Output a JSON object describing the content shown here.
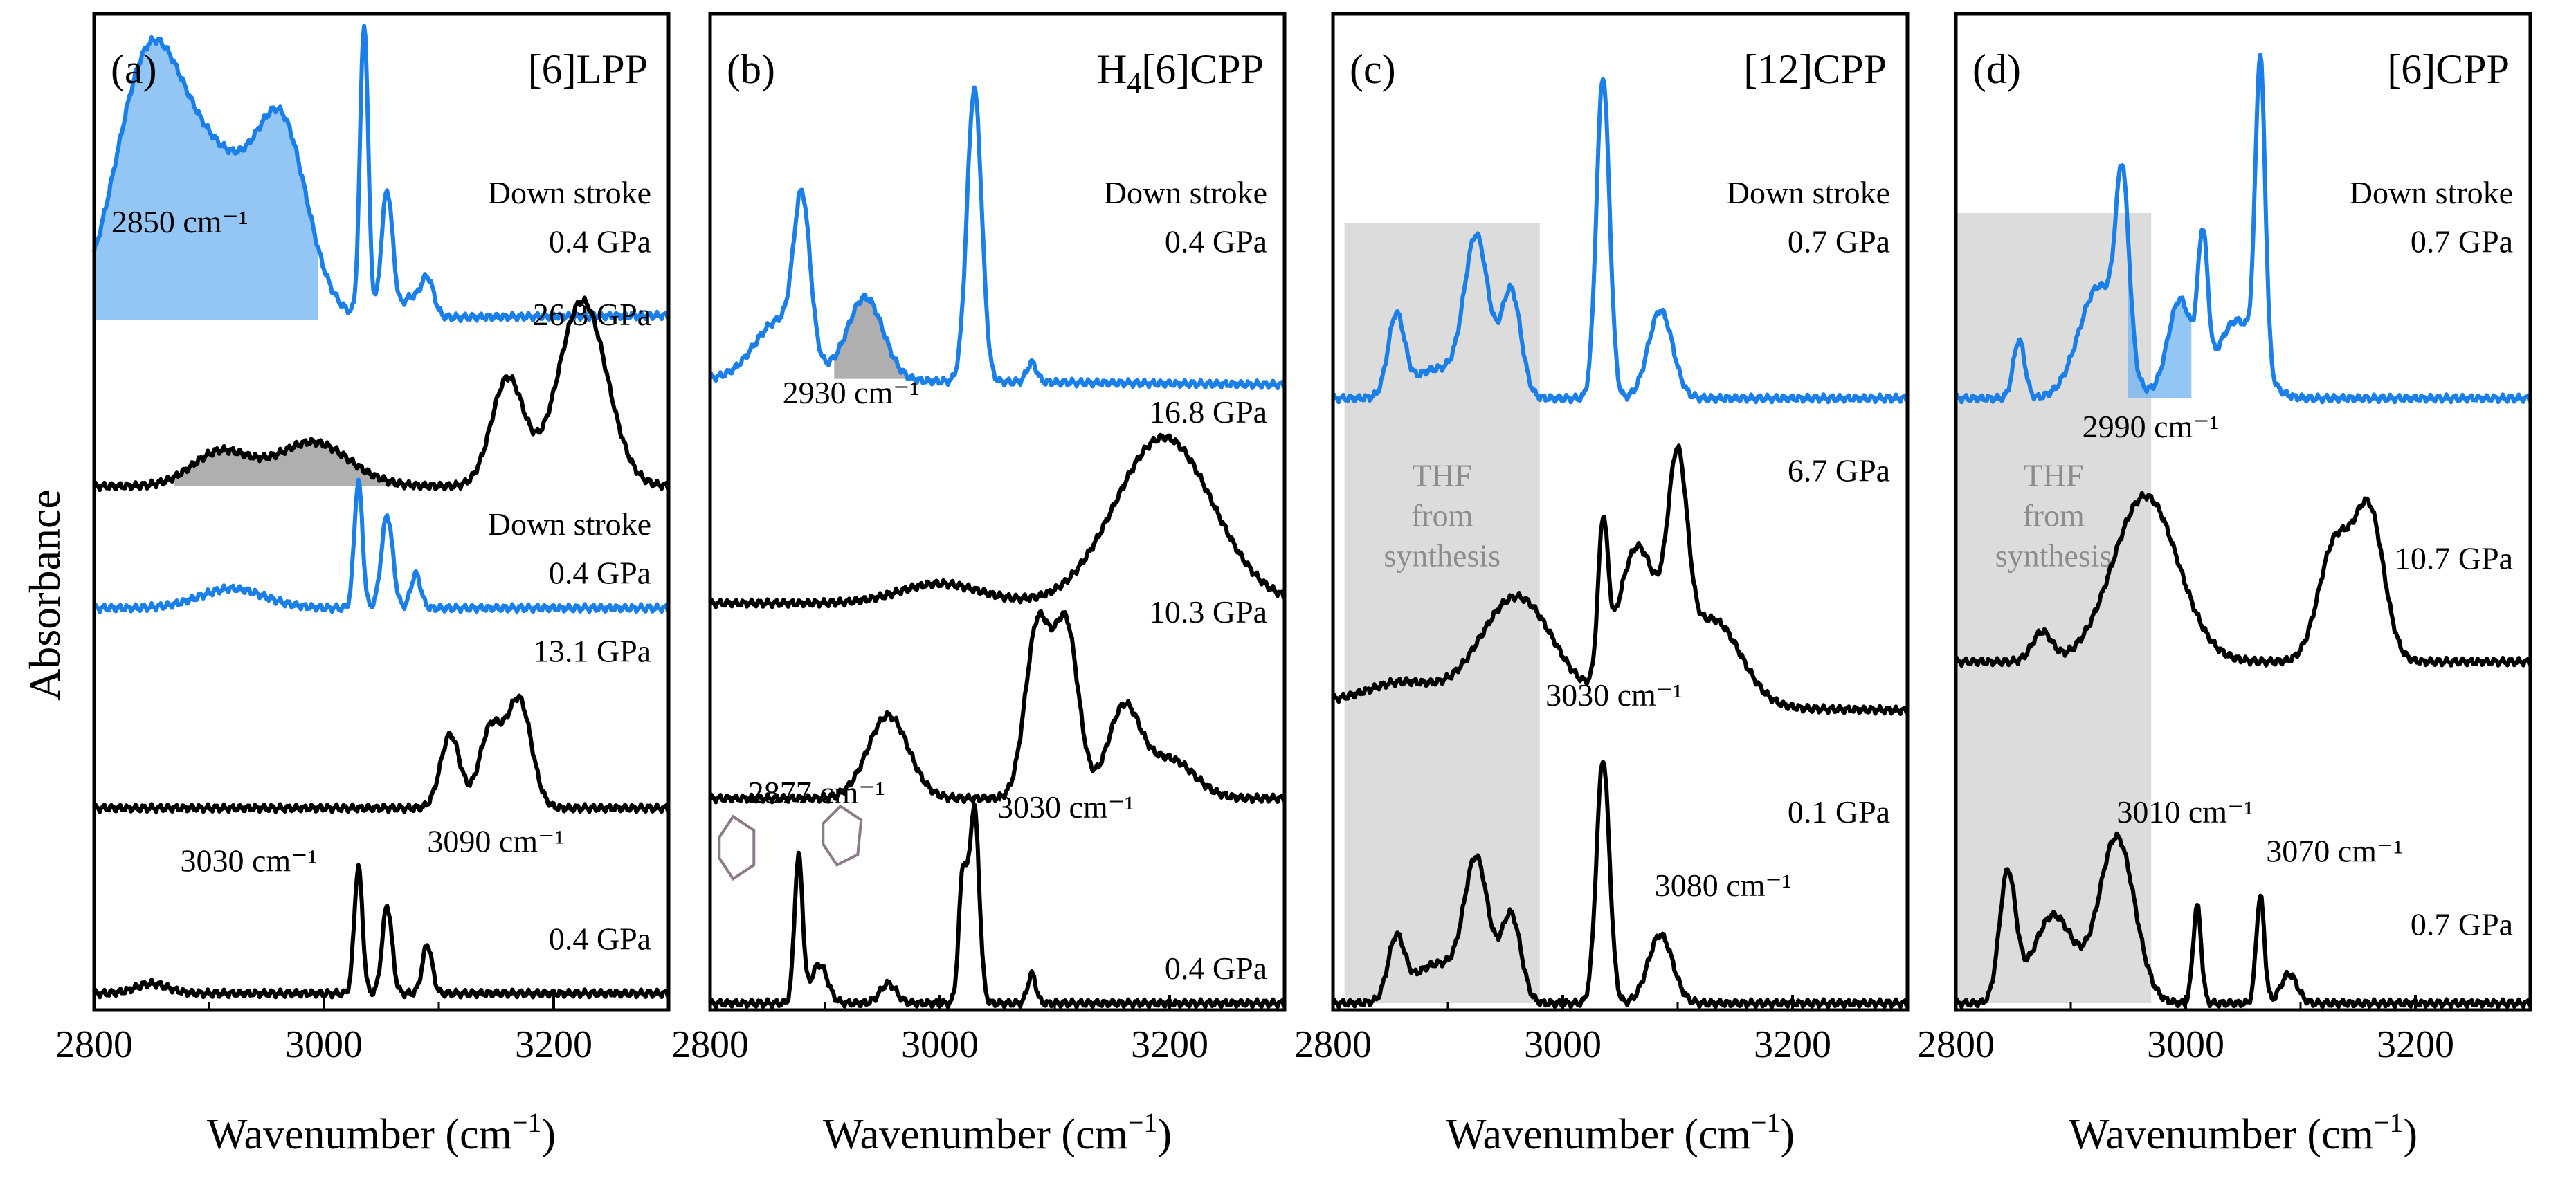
{
  "figure": {
    "y_axis_label": "Absorbance",
    "x_axis_label": "Wavenumber (cm",
    "x_axis_label_sup": "−1",
    "x_axis_label_tail": ")"
  },
  "colors": {
    "blue": "#1a7fe8",
    "black": "#000000",
    "gray_fill": "#a6a6a6",
    "blue_fill": "#6fb2f2",
    "thf_box": "#dcdcdc",
    "thf_text": "#8c8c8c"
  },
  "chart_data": [
    {
      "id": "a",
      "type": "line",
      "panel_label": "(a)",
      "title": "[6]LPP",
      "title_parts": [
        {
          "t": "[6]LPP",
          "sub": false
        }
      ],
      "xlim": [
        2800,
        3300
      ],
      "xticks": [
        2800,
        3000,
        3200
      ],
      "ylim": [
        0,
        1
      ],
      "series": [
        {
          "name": "0.4 GPa",
          "color": "blue",
          "role": "down stroke",
          "peaks": [
            [
              2845,
              0.92,
              40
            ],
            [
              2905,
              0.86,
              60
            ],
            [
              2965,
              0.85,
              30
            ],
            [
              3035,
              1.0,
              5
            ],
            [
              3055,
              0.83,
              7
            ],
            [
              3075,
              0.72,
              10
            ],
            [
              3090,
              0.74,
              8
            ]
          ],
          "base": 0.7,
          "tilt": 0.005
        },
        {
          "name": "26.3 GPa",
          "color": "black",
          "peaks": [
            [
              2910,
              0.565,
              35
            ],
            [
              2990,
              0.575,
              45
            ],
            [
              3160,
              0.64,
              20
            ],
            [
              3225,
              0.72,
              30
            ]
          ],
          "base": 0.53,
          "tilt": 0.0
        },
        {
          "name": "0.4 GPa",
          "color": "blue",
          "role": "down stroke",
          "peaks": [
            [
              3030,
              0.535,
              5
            ],
            [
              3055,
              0.5,
              7
            ],
            [
              3080,
              0.44,
              6
            ],
            [
              2920,
              0.425,
              40
            ]
          ],
          "base": 0.405,
          "tilt": 0.0
        },
        {
          "name": "13.1 GPa",
          "color": "black",
          "peaks": [
            [
              3110,
              0.275,
              12
            ],
            [
              3145,
              0.28,
              14
            ],
            [
              3170,
              0.31,
              15
            ]
          ],
          "base": 0.2,
          "tilt": 0.0
        },
        {
          "name": "0.4 GPa",
          "color": "black",
          "peaks": [
            [
              3030,
              0.14,
              5
            ],
            [
              3055,
              0.1,
              6
            ],
            [
              3090,
              0.06,
              6
            ],
            [
              2850,
              0.02,
              20
            ]
          ],
          "base": 0.01,
          "tilt": 0.0
        }
      ],
      "annotations": [
        {
          "text": "Down stroke",
          "wn": 3285,
          "y": 0.82,
          "anchor": "end"
        },
        {
          "text": "0.4 GPa",
          "wn": 3285,
          "y": 0.77,
          "anchor": "end"
        },
        {
          "text": "26.3 GPa",
          "wn": 3285,
          "y": 0.695,
          "anchor": "end"
        },
        {
          "text": "Down stroke",
          "wn": 3285,
          "y": 0.48,
          "anchor": "end"
        },
        {
          "text": "0.4 GPa",
          "wn": 3285,
          "y": 0.43,
          "anchor": "end"
        },
        {
          "text": "13.1 GPa",
          "wn": 3285,
          "y": 0.35,
          "anchor": "end"
        },
        {
          "text": "3030 cm⁻¹",
          "wn": 2875,
          "y": 0.135,
          "anchor": "start"
        },
        {
          "text": "3090 cm⁻¹",
          "wn": 3090,
          "y": 0.155,
          "anchor": "start"
        },
        {
          "text": "0.4 GPa",
          "wn": 3285,
          "y": 0.055,
          "anchor": "end"
        },
        {
          "text": "2850 cm⁻¹",
          "wn": 2815,
          "y": 0.79,
          "anchor": "start"
        }
      ],
      "shaded": [
        {
          "kind": "blue_fill",
          "series_index": 0,
          "wn_range": [
            2800,
            2995
          ],
          "floor": 0.7
        },
        {
          "kind": "gray_fill",
          "series_index": 1,
          "wn_range": [
            2870,
            3070
          ],
          "floor": 0.53
        }
      ]
    },
    {
      "id": "b",
      "type": "line",
      "panel_label": "(b)",
      "title": "H4[6]CPP",
      "title_parts": [
        {
          "t": "H",
          "sub": false
        },
        {
          "t": "4",
          "sub": true
        },
        {
          "t": "[6]CPP",
          "sub": false
        }
      ],
      "xlim": [
        2800,
        3300
      ],
      "xticks": [
        2800,
        3000,
        3200
      ],
      "ylim": [
        0,
        1
      ],
      "series": [
        {
          "name": "0.4 GPa",
          "color": "blue",
          "role": "down stroke",
          "peaks": [
            [
              2880,
              0.795,
              10
            ],
            [
              2935,
              0.725,
              22
            ],
            [
              3030,
              0.94,
              9
            ],
            [
              3080,
              0.66,
              6
            ],
            [
              2860,
              0.7,
              30
            ]
          ],
          "base": 0.64,
          "tilt": -0.006
        },
        {
          "name": "16.8 GPa",
          "color": "black",
          "peaks": [
            [
              3195,
              0.58,
              60
            ],
            [
              3000,
              0.43,
              50
            ]
          ],
          "base": 0.41,
          "tilt": 0.0
        },
        {
          "name": "10.3 GPa",
          "color": "black",
          "peaks": [
            [
              2955,
              0.295,
              25
            ],
            [
              3085,
              0.385,
              15
            ],
            [
              3110,
              0.385,
              15
            ],
            [
              3160,
              0.3,
              20
            ],
            [
              3200,
              0.25,
              30
            ]
          ],
          "base": 0.21,
          "tilt": 0.0
        },
        {
          "name": "0.4 GPa",
          "color": "black",
          "peaks": [
            [
              2877,
              0.15,
              5
            ],
            [
              2895,
              0.04,
              10
            ],
            [
              2955,
              0.02,
              10
            ],
            [
              3020,
              0.13,
              5
            ],
            [
              3030,
              0.2,
              6
            ],
            [
              3080,
              0.03,
              5
            ]
          ],
          "base": 0.0,
          "tilt": 0.0
        }
      ],
      "annotations": [
        {
          "text": "Down stroke",
          "wn": 3285,
          "y": 0.82,
          "anchor": "end"
        },
        {
          "text": "0.4 GPa",
          "wn": 3285,
          "y": 0.77,
          "anchor": "end"
        },
        {
          "text": "2930 cm⁻¹",
          "wn": 2863,
          "y": 0.615,
          "anchor": "start"
        },
        {
          "text": "16.8 GPa",
          "wn": 3285,
          "y": 0.595,
          "anchor": "end"
        },
        {
          "text": "10.3 GPa",
          "wn": 3285,
          "y": 0.39,
          "anchor": "end"
        },
        {
          "text": "2877 cm⁻¹",
          "wn": 2833,
          "y": 0.205,
          "anchor": "start"
        },
        {
          "text": "3030 cm⁻¹",
          "wn": 3050,
          "y": 0.19,
          "anchor": "start"
        },
        {
          "text": "0.4 GPa",
          "wn": 3285,
          "y": 0.025,
          "anchor": "end"
        }
      ],
      "shaded": [
        {
          "kind": "gray_fill",
          "series_index": 0,
          "wn_range": [
            2908,
            2975
          ],
          "floor": 0.64
        }
      ],
      "molecules": true
    },
    {
      "id": "c",
      "type": "line",
      "panel_label": "(c)",
      "title": "[12]CPP",
      "title_parts": [
        {
          "t": "[12]CPP",
          "sub": false
        }
      ],
      "xlim": [
        2800,
        3300
      ],
      "xticks": [
        2800,
        3000,
        3200
      ],
      "ylim": [
        0,
        1
      ],
      "series": [
        {
          "name": "0.7 GPa",
          "color": "blue",
          "role": "down stroke",
          "peaks": [
            [
              2855,
              0.7,
              10
            ],
            [
              2925,
              0.78,
              15
            ],
            [
              2955,
              0.73,
              12
            ],
            [
              3035,
              0.95,
              8
            ],
            [
              3085,
              0.71,
              15
            ],
            [
              2890,
              0.65,
              30
            ]
          ],
          "base": 0.62,
          "tilt": 0.0
        },
        {
          "name": "6.7 GPa",
          "color": "black",
          "peaks": [
            [
              2860,
              0.33,
              40
            ],
            [
              2960,
              0.42,
              45
            ],
            [
              3035,
              0.46,
              6
            ],
            [
              3065,
              0.47,
              25
            ],
            [
              3100,
              0.51,
              12
            ],
            [
              3130,
              0.4,
              35
            ]
          ],
          "base": 0.31,
          "tilt": -0.01
        },
        {
          "name": "0.1 GPa",
          "color": "black",
          "peaks": [
            [
              2855,
              0.06,
              10
            ],
            [
              2925,
              0.14,
              15
            ],
            [
              2955,
              0.09,
              12
            ],
            [
              3035,
              0.25,
              8
            ],
            [
              3085,
              0.07,
              15
            ],
            [
              2890,
              0.04,
              30
            ]
          ],
          "base": 0.0,
          "tilt": 0.0
        }
      ],
      "annotations": [
        {
          "text": "Down stroke",
          "wn": 3285,
          "y": 0.82,
          "anchor": "end"
        },
        {
          "text": "0.7 GPa",
          "wn": 3285,
          "y": 0.77,
          "anchor": "end"
        },
        {
          "text": "6.7 GPa",
          "wn": 3285,
          "y": 0.535,
          "anchor": "end"
        },
        {
          "text": "3030 cm⁻¹",
          "wn": 2985,
          "y": 0.305,
          "anchor": "start"
        },
        {
          "text": "0.1 GPa",
          "wn": 3285,
          "y": 0.185,
          "anchor": "end"
        },
        {
          "text": "3080 cm⁻¹",
          "wn": 3080,
          "y": 0.11,
          "anchor": "start"
        }
      ],
      "thf": {
        "wn_range": [
          2810,
          2980
        ],
        "y_range": [
          0.0,
          0.8
        ],
        "lines": [
          "THF",
          "from",
          "synthesis"
        ]
      }
    },
    {
      "id": "d",
      "type": "line",
      "panel_label": "(d)",
      "title": "[6]CPP",
      "title_parts": [
        {
          "t": "[6]CPP",
          "sub": false
        }
      ],
      "xlim": [
        2800,
        3300
      ],
      "xticks": [
        2800,
        3000,
        3200
      ],
      "ylim": [
        0,
        1
      ],
      "series": [
        {
          "name": "0.7 GPa",
          "color": "blue",
          "role": "down stroke",
          "peaks": [
            [
              2855,
              0.68,
              7
            ],
            [
              2925,
              0.735,
              25
            ],
            [
              2945,
              0.8,
              8
            ],
            [
              2995,
              0.72,
              15
            ],
            [
              3015,
              0.76,
              6
            ],
            [
              3065,
              0.93,
              6
            ],
            [
              3045,
              0.7,
              25
            ]
          ],
          "base": 0.62,
          "tilt": 0.0
        },
        {
          "name": "10.7 GPa",
          "color": "black",
          "peaks": [
            [
              2875,
              0.38,
              12
            ],
            [
              2965,
              0.52,
              40
            ],
            [
              3130,
              0.47,
              20
            ],
            [
              3160,
              0.5,
              18
            ]
          ],
          "base": 0.35,
          "tilt": 0.0
        },
        {
          "name": "0.7 GPa",
          "color": "black",
          "peaks": [
            [
              2845,
              0.13,
              10
            ],
            [
              2885,
              0.09,
              25
            ],
            [
              2940,
              0.17,
              22
            ],
            [
              3010,
              0.1,
              5
            ],
            [
              3065,
              0.11,
              5
            ],
            [
              3090,
              0.03,
              10
            ]
          ],
          "base": 0.0,
          "tilt": 0.0
        }
      ],
      "annotations": [
        {
          "text": "Down stroke",
          "wn": 3285,
          "y": 0.82,
          "anchor": "end"
        },
        {
          "text": "0.7 GPa",
          "wn": 3285,
          "y": 0.77,
          "anchor": "end"
        },
        {
          "text": "2990 cm⁻¹",
          "wn": 2910,
          "y": 0.58,
          "anchor": "start"
        },
        {
          "text": "10.7 GPa",
          "wn": 3285,
          "y": 0.445,
          "anchor": "end"
        },
        {
          "text": "3010 cm⁻¹",
          "wn": 2940,
          "y": 0.185,
          "anchor": "start"
        },
        {
          "text": "3070 cm⁻¹",
          "wn": 3070,
          "y": 0.145,
          "anchor": "start"
        },
        {
          "text": "0.7 GPa",
          "wn": 3285,
          "y": 0.07,
          "anchor": "end"
        }
      ],
      "thf": {
        "wn_range": [
          2800,
          2970
        ],
        "y_range": [
          0.0,
          0.81
        ],
        "lines": [
          "THF",
          "from",
          "synthesis"
        ]
      },
      "shaded": [
        {
          "kind": "blue_fill",
          "series_index": 0,
          "wn_range": [
            2950,
            3005
          ],
          "floor": 0.62
        }
      ]
    }
  ]
}
